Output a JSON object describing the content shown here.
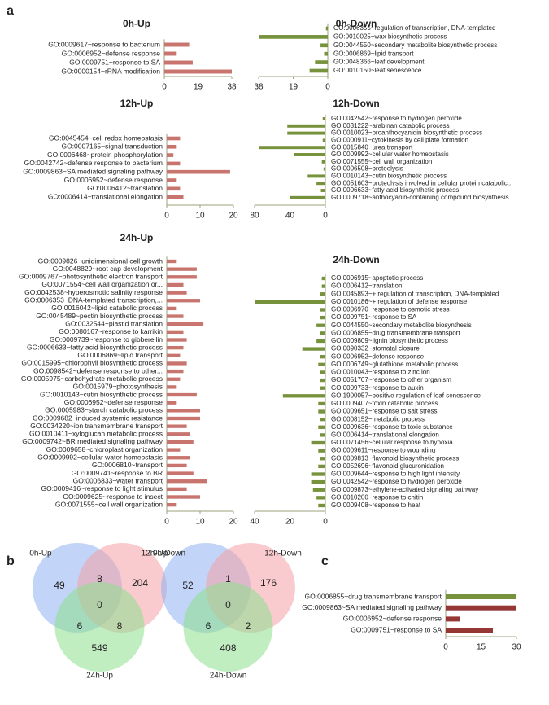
{
  "panel_labels": [
    "a",
    "b",
    "c"
  ],
  "chart_data": [
    {
      "type": "bar",
      "orientation": "horizontal",
      "title": "0h-Up",
      "color": "#c9756f",
      "categories": [
        "GO:0009617~response to bacterium",
        "GO:0006952~defense response",
        "GO:0009751~response to SA",
        "GO:0000154~rRNA modification"
      ],
      "values": [
        14,
        7,
        16,
        38
      ],
      "xlim": [
        0,
        38
      ],
      "xticks": [
        0,
        19,
        38
      ]
    },
    {
      "type": "bar",
      "orientation": "horizontal",
      "title": "0h-Down",
      "color": "#76923c",
      "categories": [
        "GO:0006355~regulation of transcription, DNA-templated",
        "GO:0010025~wax biosynthetic process",
        "GO:0044550~secondary metabolite biosynthetic process",
        "GO:0006869~lipid transport",
        "GO:0048366~leaf development",
        "GO:0010150~leaf senescence"
      ],
      "values": [
        1,
        38,
        4,
        2,
        7,
        10
      ],
      "xlim": [
        38,
        0
      ],
      "xticks": [
        38,
        19,
        0
      ]
    },
    {
      "type": "bar",
      "orientation": "horizontal",
      "title": "12h-Up",
      "color": "#c9756f",
      "categories": [
        "GO:0045454~cell redox homeostasis",
        "GO:0007165~signal transduction",
        "GO:0006468~protein phosphorylation",
        "GO:0042742~defense response to bacterium",
        "GO:0009863~SA mediated signaling pathway",
        "GO:0006952~defense response",
        "GO:0006412~translation",
        "GO:0006414~translational elongation"
      ],
      "values": [
        4,
        3,
        2,
        4,
        19,
        3,
        4,
        5
      ],
      "xlim": [
        0,
        20
      ],
      "xticks": [
        0,
        10,
        20
      ]
    },
    {
      "type": "bar",
      "orientation": "horizontal",
      "title": "12h-Down",
      "color": "#76923c",
      "categories": [
        "GO:0042542~response to hydrogen peroxide",
        "GO:0031222~arabinan catabolic process",
        "GO:0010023~proanthocyanidin biosynthetic process",
        "GO:0000911~cytokinesis by cell plate formation",
        "GO:0015840~urea transport",
        "GO:0009992~cellular water homeostasis",
        "GO:0071555~cell wall organization",
        "GO:0006508~proteolysis",
        "GO:0010143~cutin biosynthetic process",
        "GO:0051603~proteolysis involved in cellular protein catabolic...",
        "GO:0006633~fatty acid biosynthetic process",
        "GO:0009718~anthocyanin-containing compound biosynthesis"
      ],
      "values": [
        3,
        43,
        43,
        3,
        75,
        35,
        4,
        2,
        20,
        10,
        5,
        40
      ],
      "xlim": [
        80,
        0
      ],
      "xticks": [
        80,
        40,
        0
      ]
    },
    {
      "type": "bar",
      "orientation": "horizontal",
      "title": "24h-Up",
      "color": "#c9756f",
      "categories": [
        "GO:0009826~unidimensional cell growth",
        "GO:0048829~root cap development",
        "GO:0009767~photosynthetic electron transport",
        "GO:0071554~cell wall organization or...",
        "GO:0042538~hyperosmotic salinity response",
        "GO:0006353~DNA-templated transcription,...",
        "GO:0016042~lipid catabolic process",
        "GO:0045489~pectin biosynthetic process",
        "GO:0032544~plastid translation",
        "GO:0080167~response to karrikin",
        "GO:0009739~response to gibberellin",
        "GO:0006633~fatty acid biosynthetic process",
        "GO:0006869~lipid transport",
        "GO:0015995~chlorophyll biosynthetic process",
        "GO:0098542~defense response to other...",
        "GO:0005975~carbohydrate metabolic process",
        "GO:0015979~photosynthesis",
        "GO:0010143~cutin biosynthetic process",
        "GO:0006952~defense response",
        "GO:0005983~starch catabolic process",
        "GO:0009682~induced systemic resistance",
        "GO:0034220~ion transmembrane transport",
        "GO:0010411~xyloglucan metabolic process",
        "GO:0009742~BR mediated signaling pathway",
        "GO:0009658~chloroplast organization",
        "GO:0009992~cellular water homeostasis",
        "GO:0006810~transport",
        "GO:0009741~response to BR",
        "GO:0006833~water transport",
        "GO:0009416~response to light stimulus",
        "GO:0009625~response to insect",
        "GO:0071555~cell wall organization"
      ],
      "values": [
        3,
        9,
        9,
        5,
        6,
        10,
        3,
        5,
        11,
        5,
        6,
        5,
        4,
        6,
        5,
        4,
        3,
        9,
        3,
        10,
        10,
        6,
        7,
        8,
        4,
        7,
        6,
        8,
        12,
        6,
        10,
        3
      ],
      "xlim": [
        0,
        20
      ],
      "xticks": [
        0,
        10,
        20
      ]
    },
    {
      "type": "bar",
      "orientation": "horizontal",
      "title": "24h-Down",
      "color": "#76923c",
      "categories": [
        "GO:0006915~apoptotic process",
        "GO:0006412~translation",
        "GO:0045893~+ regulation of transcription, DNA-templated",
        "GO:0010186~+ regulation of defense response",
        "GO:0006970~response to osmotic stress",
        "GO:0009751~response to SA",
        "GO:0044550~secondary metabolite biosynthesis",
        "GO:0006855~drug transmembrane transport",
        "GO:0009809~lignin biosynthetic process",
        "GO:0090332~stomatal closure",
        "GO:0006952~defense response",
        "GO:0006749~glutathione metabolic process",
        "GO:0010043~response to zinc ion",
        "GO:0051707~response to other organism",
        "GO:0009733~response to auxin",
        "GO:1900057~positive regulation of leaf senescence",
        "GO:0009407~toxin catabolic process",
        "GO:0009651~response to salt stress",
        "GO:0008152~metabolic process",
        "GO:0009636~response to toxic substance",
        "GO:0006414~translational elongation",
        "GO:0071456~cellular response to hypoxia",
        "GO:0009611~response to wounding",
        "GO:0009813~flavonoid biosynthetic process",
        "GO:0052696~flavonoid glucuronidation",
        "GO:0009644~response to high light intensity",
        "GO:0042542~response to hydrogen peroxide",
        "GO:0009873~ethylene-activated signaling pathway",
        "GO:0010200~response to chitin",
        "GO:0009408~response to heat"
      ],
      "values": [
        2,
        2,
        3,
        40,
        3,
        3,
        5,
        3,
        5,
        13,
        3,
        4,
        3,
        3,
        3,
        24,
        4,
        4,
        3,
        4,
        3,
        8,
        4,
        3,
        4,
        8,
        8,
        7,
        5,
        4
      ],
      "xlim": [
        40,
        0
      ],
      "xticks": [
        40,
        20,
        0
      ]
    },
    {
      "type": "venn",
      "sets": [
        "0h-Up",
        "12h-Up",
        "24h-Up"
      ],
      "colors": [
        "#8fb0f0",
        "#f4a0a8",
        "#8ee08e"
      ],
      "values": [
        49,
        8,
        204,
        0,
        6,
        8,
        549
      ]
    },
    {
      "type": "venn",
      "sets": [
        "0h-Down",
        "12h-Down",
        "24h-Down"
      ],
      "colors": [
        "#8fb0f0",
        "#f4a0a8",
        "#8ee08e"
      ],
      "values": [
        52,
        1,
        176,
        0,
        6,
        2,
        408
      ]
    },
    {
      "type": "bar",
      "orientation": "horizontal",
      "colors": [
        "#76923c",
        "#953735",
        "#953735",
        "#953735"
      ],
      "categories": [
        "GO:0006855~drug transmembrane transport",
        "GO:0009863~SA mediated signaling pathway",
        "GO:0006952~defense response",
        "GO:0009751~response to SA"
      ],
      "values": [
        30,
        30,
        6,
        20
      ],
      "xlim": [
        0,
        30
      ],
      "xticks": [
        0,
        15,
        30
      ]
    }
  ]
}
